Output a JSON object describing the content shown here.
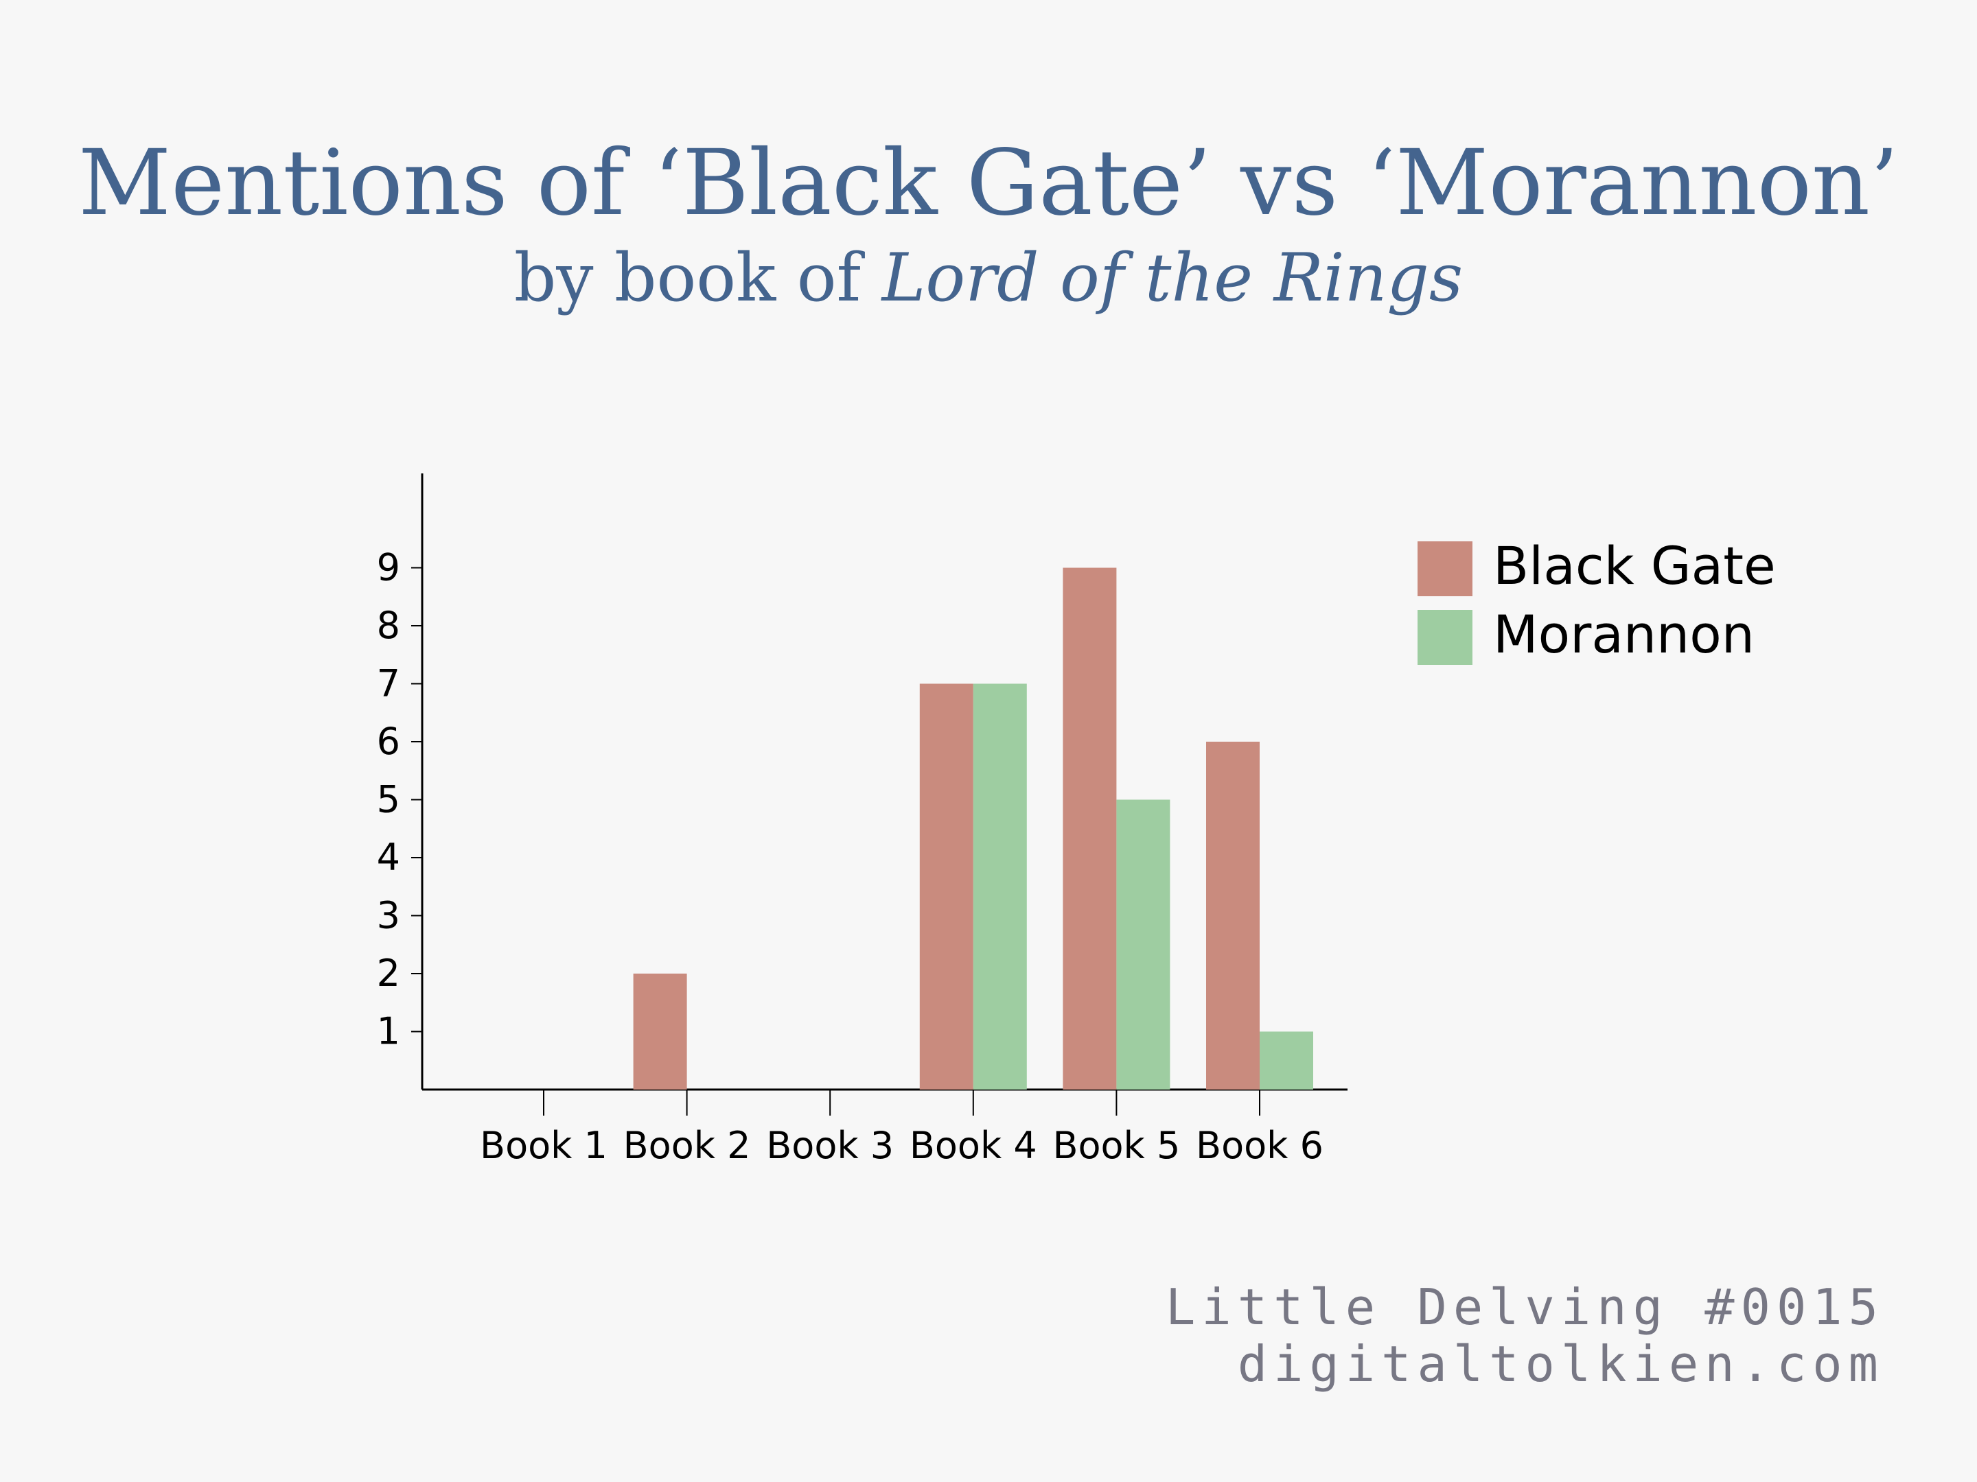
{
  "header": {
    "title": "Mentions of ‘Black Gate’ vs ‘Morannon’",
    "subtitle_prefix": "by book of ",
    "subtitle_italic": "Lord of the Rings"
  },
  "footer": {
    "line1": "Little Delving #0015",
    "line2": "digitaltolkien.com"
  },
  "chart_data": {
    "type": "bar",
    "title": "Mentions of ‘Black Gate’ vs ‘Morannon’",
    "subtitle": "by book of Lord of the Rings",
    "xlabel": "",
    "ylabel": "",
    "categories": [
      "Book 1",
      "Book 2",
      "Book 3",
      "Book 4",
      "Book 5",
      "Book 6"
    ],
    "series": [
      {
        "name": "Black Gate",
        "color": "#c98b7e",
        "values": [
          0,
          2,
          0,
          7,
          9,
          6
        ]
      },
      {
        "name": "Morannon",
        "color": "#9ecda1",
        "values": [
          0,
          0,
          0,
          7,
          5,
          1
        ]
      }
    ],
    "yticks": [
      1,
      2,
      3,
      4,
      5,
      6,
      7,
      8,
      9
    ],
    "ylim": [
      0,
      10.6
    ],
    "grid": false,
    "legend": "top-right"
  }
}
